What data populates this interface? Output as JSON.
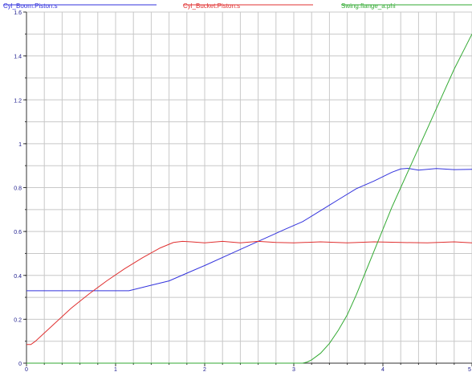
{
  "chart_data": {
    "type": "line",
    "title": "",
    "xlabel": "",
    "ylabel": "",
    "xlim": [
      0,
      5
    ],
    "ylim": [
      0,
      1.6
    ],
    "grid": true,
    "legend_placement": "top",
    "xticks": [
      "0",
      "1",
      "2",
      "3",
      "4",
      "5"
    ],
    "yticks": [
      "0",
      "0.2",
      "0.4",
      "0.6",
      "0.8",
      "1",
      "1.2",
      "1.4",
      "1.6"
    ],
    "series": [
      {
        "name": "Cyl_Boom.Piston.s",
        "color": "#3333dd",
        "x": [
          0,
          0.5,
          1.0,
          1.15,
          1.4,
          1.6,
          1.8,
          2.0,
          2.3,
          2.6,
          2.9,
          3.1,
          3.3,
          3.5,
          3.7,
          3.9,
          4.1,
          4.2,
          4.28,
          4.4,
          4.6,
          4.8,
          5.0
        ],
        "y": [
          0.33,
          0.33,
          0.33,
          0.33,
          0.355,
          0.375,
          0.41,
          0.445,
          0.5,
          0.555,
          0.61,
          0.645,
          0.695,
          0.745,
          0.795,
          0.83,
          0.87,
          0.885,
          0.888,
          0.88,
          0.887,
          0.882,
          0.883
        ]
      },
      {
        "name": "Cyl_Bucket.Piston.s",
        "color": "#e03030",
        "x": [
          0,
          0.05,
          0.1,
          0.3,
          0.5,
          0.7,
          0.9,
          1.1,
          1.3,
          1.5,
          1.65,
          1.75,
          1.85,
          2.0,
          2.2,
          2.4,
          2.6,
          2.8,
          3.0,
          3.3,
          3.6,
          3.9,
          4.2,
          4.5,
          4.8,
          5.0
        ],
        "y": [
          0.085,
          0.085,
          0.1,
          0.175,
          0.25,
          0.315,
          0.375,
          0.43,
          0.48,
          0.525,
          0.55,
          0.555,
          0.553,
          0.548,
          0.555,
          0.548,
          0.555,
          0.55,
          0.548,
          0.553,
          0.548,
          0.553,
          0.55,
          0.548,
          0.553,
          0.548
        ]
      },
      {
        "name": "Swing.flange_a.phi",
        "color": "#33aa33",
        "x": [
          0,
          1.0,
          2.0,
          3.0,
          3.1,
          3.15,
          3.2,
          3.3,
          3.4,
          3.5,
          3.6,
          3.7,
          3.8,
          3.9,
          4.0,
          4.1,
          4.2,
          4.3,
          4.4,
          4.5,
          4.6,
          4.7,
          4.8,
          4.9,
          5.0
        ],
        "y": [
          0,
          0,
          0,
          0,
          0,
          0.005,
          0.015,
          0.045,
          0.09,
          0.15,
          0.22,
          0.31,
          0.41,
          0.51,
          0.61,
          0.71,
          0.8,
          0.89,
          0.98,
          1.07,
          1.16,
          1.25,
          1.34,
          1.42,
          1.5
        ]
      }
    ]
  }
}
